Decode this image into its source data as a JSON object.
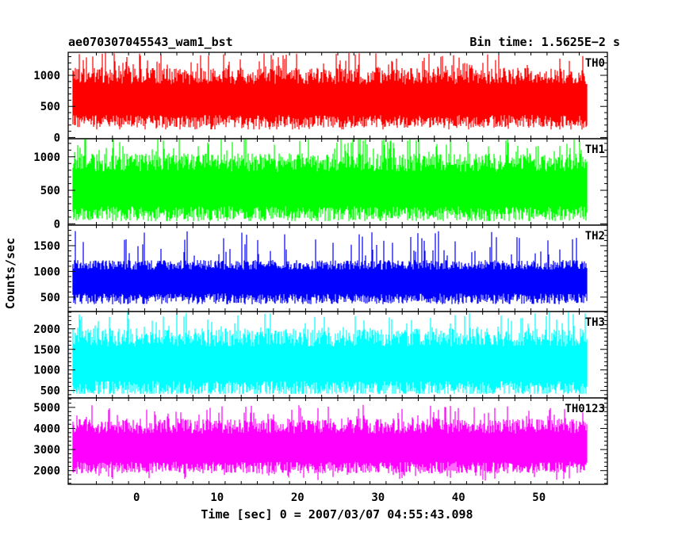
{
  "header": {
    "title_left": "ae070307045543_wam1_bst",
    "title_right": "Bin time: 1.5625E−2 s"
  },
  "chart_data": {
    "type": "line",
    "title": "ae070307045543_wam1_bst",
    "subtitle": "Bin time: 1.5625E−2 s",
    "xlabel": "Time [sec] 0 = 2007/03/07 04:55:43.098",
    "ylabel": "Counts/sec",
    "xlim": [
      -8.5,
      58.5
    ],
    "xticks": [
      0,
      10,
      20,
      30,
      40,
      50
    ],
    "data_x_range": [
      -8,
      56
    ],
    "bin_time": 0.015625,
    "grid": false,
    "panels": [
      {
        "name": "TH0",
        "color": "#ff0000",
        "ylim": [
          -20,
          1370
        ],
        "yticks": [
          0,
          500,
          1000
        ],
        "mean": 650,
        "spread": 230,
        "min": 130,
        "max": 1370,
        "style": "dense"
      },
      {
        "name": "TH1",
        "color": "#00ff00",
        "ylim": [
          -20,
          1270
        ],
        "yticks": [
          0,
          500,
          1000
        ],
        "mean": 560,
        "spread": 240,
        "min": 40,
        "max": 1270,
        "style": "dense"
      },
      {
        "name": "TH2",
        "color": "#0000ff",
        "ylim": [
          220,
          1900
        ],
        "yticks": [
          500,
          1000,
          1500
        ],
        "mean": 780,
        "spread": 210,
        "min": 260,
        "max": 1850,
        "style": "sparse"
      },
      {
        "name": "TH3",
        "color": "#00ffff",
        "ylim": [
          320,
          2420
        ],
        "yticks": [
          500,
          1000,
          1500,
          2000
        ],
        "mean": 1220,
        "spread": 390,
        "min": 420,
        "max": 2420,
        "style": "dense"
      },
      {
        "name": "TH0123",
        "color": "#ff00ff",
        "ylim": [
          1350,
          5450
        ],
        "yticks": [
          2000,
          3000,
          4000,
          5000
        ],
        "mean": 3200,
        "spread": 620,
        "min": 1500,
        "max": 5450,
        "style": "dense"
      }
    ]
  }
}
